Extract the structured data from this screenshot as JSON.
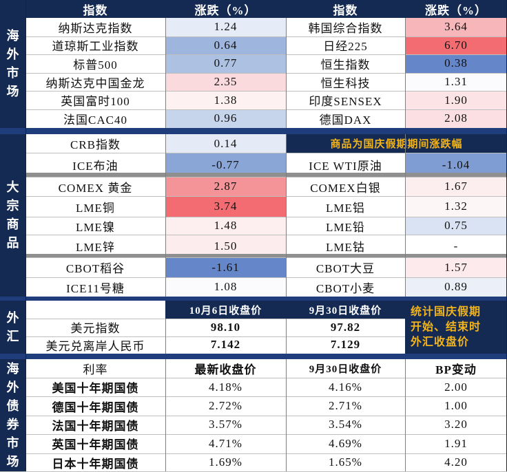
{
  "overseas_markets": {
    "section_label": "海外市场",
    "header_index": "指数",
    "header_change": "涨跌（%）",
    "rows": [
      {
        "left_name": "纳斯达克指数",
        "left_value": "1.24",
        "left_color": "#e6ecf7",
        "right_name": "韩国综合指数",
        "right_value": "3.64",
        "right_color": "#f7b6b9"
      },
      {
        "left_name": "道琼斯工业指数",
        "left_value": "0.64",
        "left_color": "#9eb5de",
        "right_name": "日经225",
        "right_value": "6.70",
        "right_color": "#f36c71"
      },
      {
        "left_name": "标普500",
        "left_value": "0.77",
        "left_color": "#adc1e3",
        "right_name": "恒生指数",
        "right_value": "0.38",
        "right_color": "#6587c9"
      },
      {
        "left_name": "纳斯达克中国金龙",
        "left_value": "2.35",
        "left_color": "#fbdadd",
        "right_name": "恒生科技",
        "right_value": "1.31",
        "right_color": "#fbfbfd"
      },
      {
        "left_name": "英国富时100",
        "left_value": "1.38",
        "left_color": "#fdf1f2",
        "right_name": "印度SENSEX",
        "right_value": "1.90",
        "right_color": "#fce4e6"
      },
      {
        "left_name": "法国CAC40",
        "left_value": "0.96",
        "left_color": "#c6d4ec",
        "right_name": "德国DAX",
        "right_value": "2.08",
        "right_color": "#fbdfe2"
      }
    ]
  },
  "commodities": {
    "section_label": "大宗商品",
    "note": "商品为国庆假期期间涨跌幅",
    "rows": [
      {
        "left_name": "CRB指数",
        "left_value": "0.14",
        "left_color": "#e4ebf7",
        "right_name": "",
        "right_value": "",
        "right_color": "#ffffff"
      },
      {
        "left_name": "ICE布油",
        "left_value": "-0.77",
        "left_color": "#8aa6d7",
        "right_name": "ICE  WTI原油",
        "right_value": "-1.04",
        "right_color": "#7f9dd2"
      },
      {
        "left_name": "COMEX 黄金",
        "left_value": "2.87",
        "left_color": "#f59498",
        "right_name": "COMEX白银",
        "right_value": "1.67",
        "right_color": "#fceeef"
      },
      {
        "left_name": "LME铜",
        "left_value": "3.74",
        "left_color": "#f36c71",
        "right_name": "LME铝",
        "right_value": "1.32",
        "right_color": "#fdf6f7"
      },
      {
        "left_name": "LME镍",
        "left_value": "1.48",
        "left_color": "#fdeef0",
        "right_name": "LME铅",
        "right_value": "0.75",
        "right_color": "#d9e3f3"
      },
      {
        "left_name": "LME锌",
        "left_value": "1.50",
        "left_color": "#fdecee",
        "right_name": "LME钴",
        "right_value": "-",
        "right_color": "#ffffff"
      },
      {
        "left_name": "CBOT稻谷",
        "left_value": "-1.61",
        "left_color": "#6587c9",
        "right_name": "CBOT大豆",
        "right_value": "1.57",
        "right_color": "#fdeaec"
      },
      {
        "left_name": "ICE11号糖",
        "left_value": "1.08",
        "left_color": "#fbfbfe",
        "right_name": "CBOT小麦",
        "right_value": "0.89",
        "right_color": "#ebf0f8"
      }
    ]
  },
  "fx": {
    "section_label": "外汇",
    "header_close_oct6": "10月6日收盘价",
    "header_close_sep30": "9月30日收盘价",
    "note_line1": "统计国庆假期",
    "note_line2": "开始、结束时",
    "note_line3": "外汇收盘价",
    "rows": [
      {
        "name": "美元指数",
        "oct6": "98.10",
        "sep30": "97.82"
      },
      {
        "name": "美元兑离岸人民币",
        "oct6": "7.142",
        "sep30": "7.129"
      }
    ]
  },
  "bonds": {
    "section_label": "海外债券市场",
    "header_rate": "利率",
    "header_latest": "最新收盘价",
    "header_sep30": "9月30日收盘价",
    "header_bp": "BP变动",
    "rows": [
      {
        "name": "美国十年期国债",
        "latest": "4.18%",
        "sep30": "4.16%",
        "bp": "2.00"
      },
      {
        "name": "德国十年期国债",
        "latest": "2.72%",
        "sep30": "2.71%",
        "bp": "1.00"
      },
      {
        "name": "法国十年期国债",
        "latest": "3.57%",
        "sep30": "3.54%",
        "bp": "3.20"
      },
      {
        "name": "英国十年期国债",
        "latest": "4.71%",
        "sep30": "4.69%",
        "bp": "1.91"
      },
      {
        "name": "日本十年期国债",
        "latest": "1.69%",
        "sep30": "1.65%",
        "bp": "4.20"
      }
    ]
  }
}
